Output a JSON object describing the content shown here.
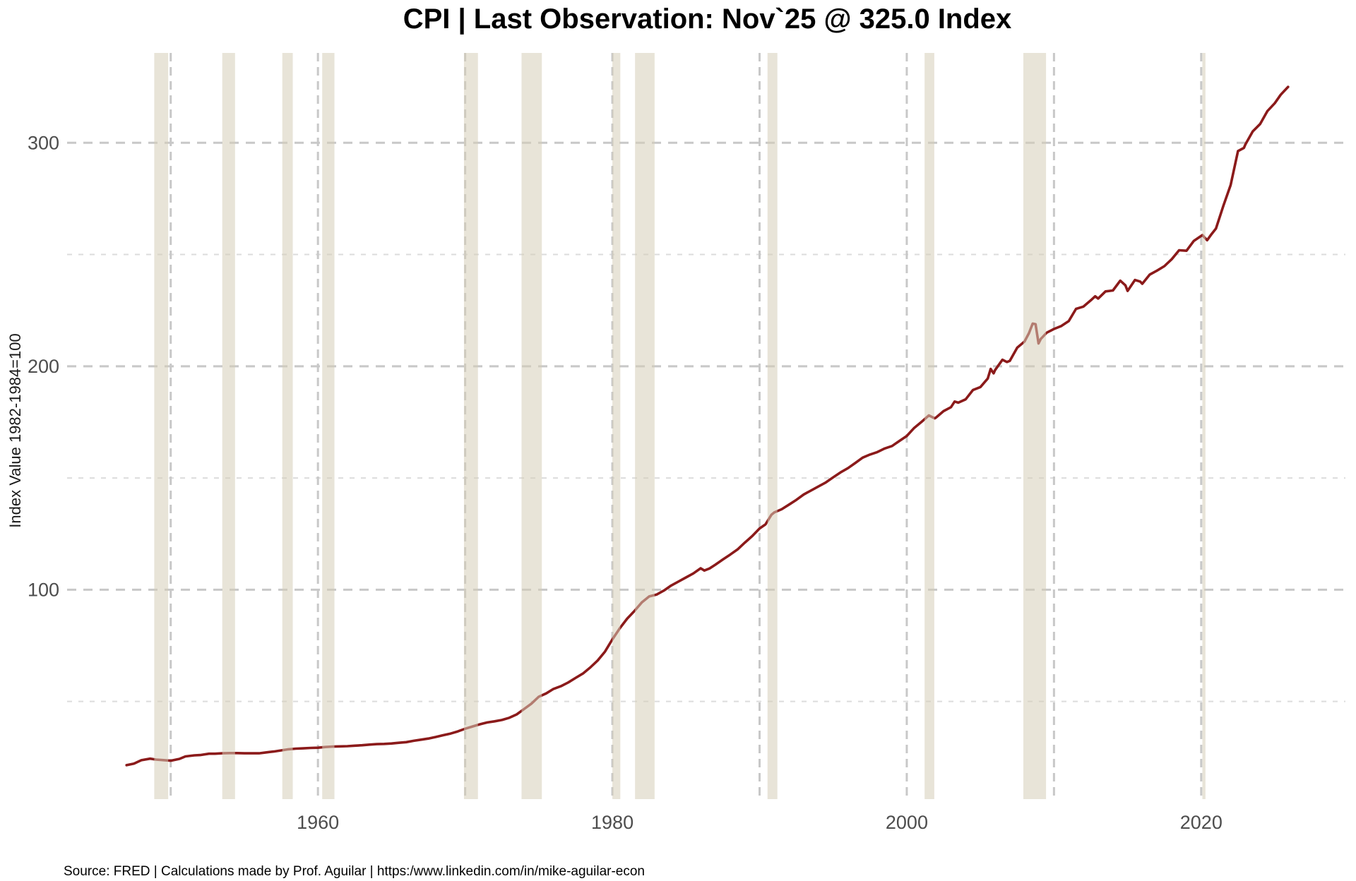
{
  "title": "CPI | Last Observation: Nov`25 @ 325.0 Index",
  "source_note": "Source: FRED | Calculations made by Prof. Aguilar | https:/www.linkedin.com/in/mike-aguilar-econ",
  "colors": {
    "line": "#8B1A1A",
    "recession_band": "#D5CEB8",
    "recession_band_opacity": 0.55,
    "grid_major": "#C8C8C8",
    "grid_minor": "#DCDCDC",
    "tick_label": "#4D4D4D",
    "title_text": "#000000",
    "background": "#FFFFFF"
  },
  "chart_data": {
    "type": "line",
    "title": "CPI | Last Observation: Nov`25 @ 325.0 Index",
    "xlabel": "",
    "ylabel": "Index Value 1982-1984=100",
    "xlim": [
      1943.2,
      2029.7
    ],
    "ylim": [
      6.3,
      340.2
    ],
    "x_ticks": [
      1960,
      1980,
      2000,
      2020
    ],
    "x_gridlines": [
      1950,
      1960,
      1970,
      1980,
      1990,
      2000,
      2010,
      2020
    ],
    "y_ticks": [
      100,
      200,
      300
    ],
    "y_minor_gridlines": [
      50,
      150,
      250
    ],
    "grid_style": "dashed",
    "legend": "none",
    "last_observation": {
      "label": "Nov`25",
      "value": 325.0
    },
    "recession_bands": [
      [
        1948.88,
        1949.83
      ],
      [
        1953.5,
        1954.37
      ],
      [
        1957.58,
        1958.29
      ],
      [
        1960.29,
        1961.12
      ],
      [
        1969.92,
        1970.87
      ],
      [
        1973.83,
        1975.21
      ],
      [
        1980.0,
        1980.54
      ],
      [
        1981.54,
        1982.87
      ],
      [
        1990.54,
        1991.21
      ],
      [
        2001.21,
        2001.87
      ],
      [
        2007.92,
        2009.46
      ],
      [
        2020.08,
        2020.29
      ]
    ],
    "series": [
      {
        "name": "CPI (Index 1982-1984=100)",
        "color": "#8B1A1A",
        "points": [
          [
            1947.0,
            21.5
          ],
          [
            1947.5,
            22.2
          ],
          [
            1948.0,
            23.7
          ],
          [
            1948.6,
            24.4
          ],
          [
            1949.0,
            24.0
          ],
          [
            1949.6,
            23.7
          ],
          [
            1950.0,
            23.5
          ],
          [
            1950.6,
            24.3
          ],
          [
            1951.0,
            25.4
          ],
          [
            1951.6,
            25.9
          ],
          [
            1952.0,
            26.0
          ],
          [
            1952.6,
            26.6
          ],
          [
            1953.0,
            26.6
          ],
          [
            1953.5,
            26.8
          ],
          [
            1954.0,
            26.9
          ],
          [
            1954.5,
            26.9
          ],
          [
            1955.0,
            26.8
          ],
          [
            1955.5,
            26.8
          ],
          [
            1956.0,
            26.8
          ],
          [
            1956.5,
            27.2
          ],
          [
            1957.0,
            27.6
          ],
          [
            1957.5,
            28.1
          ],
          [
            1958.0,
            28.6
          ],
          [
            1958.5,
            28.9
          ],
          [
            1959.0,
            29.0
          ],
          [
            1959.5,
            29.2
          ],
          [
            1960.0,
            29.3
          ],
          [
            1960.5,
            29.6
          ],
          [
            1961.0,
            29.8
          ],
          [
            1961.5,
            29.9
          ],
          [
            1962.0,
            30.0
          ],
          [
            1962.5,
            30.2
          ],
          [
            1963.0,
            30.4
          ],
          [
            1963.5,
            30.7
          ],
          [
            1964.0,
            30.9
          ],
          [
            1964.5,
            31.0
          ],
          [
            1965.0,
            31.2
          ],
          [
            1965.5,
            31.5
          ],
          [
            1966.0,
            31.8
          ],
          [
            1966.5,
            32.4
          ],
          [
            1967.0,
            32.9
          ],
          [
            1967.5,
            33.4
          ],
          [
            1968.0,
            34.1
          ],
          [
            1968.5,
            34.9
          ],
          [
            1969.0,
            35.6
          ],
          [
            1969.5,
            36.6
          ],
          [
            1970.0,
            37.8
          ],
          [
            1970.5,
            38.8
          ],
          [
            1971.0,
            39.8
          ],
          [
            1971.5,
            40.6
          ],
          [
            1972.0,
            41.1
          ],
          [
            1972.5,
            41.7
          ],
          [
            1973.0,
            42.7
          ],
          [
            1973.5,
            44.2
          ],
          [
            1974.0,
            46.6
          ],
          [
            1974.5,
            49.0
          ],
          [
            1975.0,
            52.1
          ],
          [
            1975.5,
            53.6
          ],
          [
            1976.0,
            55.6
          ],
          [
            1976.5,
            56.8
          ],
          [
            1977.0,
            58.5
          ],
          [
            1977.5,
            60.5
          ],
          [
            1978.0,
            62.5
          ],
          [
            1978.5,
            65.2
          ],
          [
            1979.0,
            68.3
          ],
          [
            1979.5,
            72.3
          ],
          [
            1980.0,
            77.8
          ],
          [
            1980.5,
            82.7
          ],
          [
            1981.0,
            87.0
          ],
          [
            1981.5,
            90.5
          ],
          [
            1982.0,
            94.3
          ],
          [
            1982.5,
            97.0
          ],
          [
            1983.0,
            97.8
          ],
          [
            1983.5,
            99.6
          ],
          [
            1984.0,
            101.9
          ],
          [
            1984.5,
            103.7
          ],
          [
            1985.0,
            105.5
          ],
          [
            1985.5,
            107.3
          ],
          [
            1986.0,
            109.6
          ],
          [
            1986.25,
            108.6
          ],
          [
            1986.6,
            109.5
          ],
          [
            1987.0,
            111.2
          ],
          [
            1987.5,
            113.5
          ],
          [
            1988.0,
            115.7
          ],
          [
            1988.5,
            118.0
          ],
          [
            1989.0,
            121.1
          ],
          [
            1989.5,
            124.0
          ],
          [
            1990.0,
            127.4
          ],
          [
            1990.4,
            129.2
          ],
          [
            1990.8,
            133.5
          ],
          [
            1991.0,
            134.6
          ],
          [
            1991.5,
            136.0
          ],
          [
            1992.0,
            138.1
          ],
          [
            1992.5,
            140.2
          ],
          [
            1993.0,
            142.6
          ],
          [
            1993.5,
            144.4
          ],
          [
            1994.0,
            146.2
          ],
          [
            1994.5,
            148.0
          ],
          [
            1995.0,
            150.3
          ],
          [
            1995.5,
            152.5
          ],
          [
            1996.0,
            154.4
          ],
          [
            1996.5,
            156.7
          ],
          [
            1997.0,
            159.1
          ],
          [
            1997.5,
            160.5
          ],
          [
            1998.0,
            161.6
          ],
          [
            1998.5,
            163.2
          ],
          [
            1999.0,
            164.3
          ],
          [
            1999.5,
            166.6
          ],
          [
            2000.0,
            168.8
          ],
          [
            2000.5,
            172.4
          ],
          [
            2001.0,
            175.1
          ],
          [
            2001.5,
            178.0
          ],
          [
            2001.9,
            176.7
          ],
          [
            2002.0,
            177.1
          ],
          [
            2002.5,
            179.9
          ],
          [
            2003.0,
            181.7
          ],
          [
            2003.25,
            184.2
          ],
          [
            2003.5,
            183.7
          ],
          [
            2004.0,
            185.2
          ],
          [
            2004.5,
            189.4
          ],
          [
            2005.0,
            190.7
          ],
          [
            2005.5,
            194.5
          ],
          [
            2005.7,
            198.8
          ],
          [
            2005.9,
            196.8
          ],
          [
            2006.0,
            198.3
          ],
          [
            2006.5,
            202.9
          ],
          [
            2006.8,
            201.9
          ],
          [
            2007.0,
            202.4
          ],
          [
            2007.5,
            208.3
          ],
          [
            2008.0,
            211.1
          ],
          [
            2008.3,
            214.8
          ],
          [
            2008.55,
            219.1
          ],
          [
            2008.75,
            218.8
          ],
          [
            2008.95,
            210.2
          ],
          [
            2009.1,
            212.2
          ],
          [
            2009.5,
            215.0
          ],
          [
            2010.0,
            216.7
          ],
          [
            2010.5,
            218.0
          ],
          [
            2011.0,
            220.2
          ],
          [
            2011.5,
            225.7
          ],
          [
            2012.0,
            226.7
          ],
          [
            2012.5,
            229.5
          ],
          [
            2012.8,
            231.3
          ],
          [
            2013.0,
            230.3
          ],
          [
            2013.5,
            233.5
          ],
          [
            2014.0,
            233.9
          ],
          [
            2014.5,
            238.3
          ],
          [
            2014.85,
            236.2
          ],
          [
            2015.0,
            233.7
          ],
          [
            2015.5,
            238.6
          ],
          [
            2015.85,
            237.9
          ],
          [
            2016.0,
            236.9
          ],
          [
            2016.5,
            241.0
          ],
          [
            2017.0,
            242.8
          ],
          [
            2017.5,
            244.8
          ],
          [
            2018.0,
            247.9
          ],
          [
            2018.5,
            251.9
          ],
          [
            2019.0,
            251.7
          ],
          [
            2019.5,
            256.1
          ],
          [
            2020.08,
            258.7
          ],
          [
            2020.4,
            256.4
          ],
          [
            2020.7,
            259.1
          ],
          [
            2021.0,
            261.6
          ],
          [
            2021.5,
            271.7
          ],
          [
            2022.0,
            281.1
          ],
          [
            2022.5,
            296.3
          ],
          [
            2022.9,
            297.7
          ],
          [
            2023.0,
            299.2
          ],
          [
            2023.5,
            305.1
          ],
          [
            2024.0,
            308.4
          ],
          [
            2024.5,
            314.2
          ],
          [
            2025.0,
            317.7
          ],
          [
            2025.4,
            321.5
          ],
          [
            2025.9,
            325.0
          ]
        ]
      }
    ]
  }
}
